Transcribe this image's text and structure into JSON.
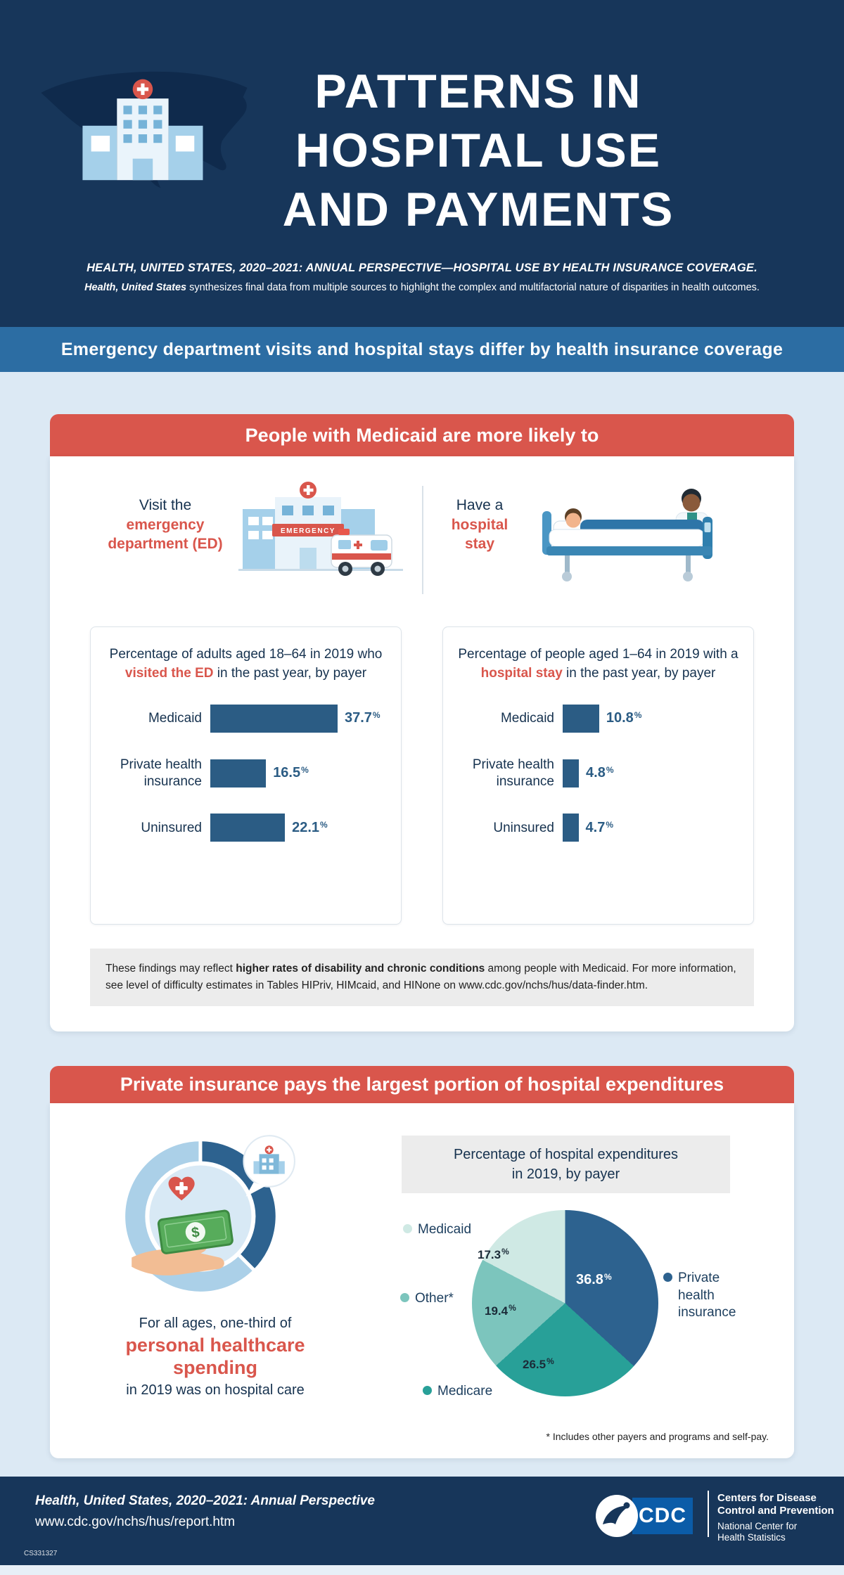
{
  "header": {
    "title_lines": [
      "PATTERNS IN",
      "HOSPITAL USE",
      "AND PAYMENTS"
    ],
    "tagline": "HEALTH, UNITED STATES, 2020–2021: ANNUAL PERSPECTIVE—HOSPITAL USE BY HEALTH INSURANCE COVERAGE.",
    "note_lead": "Health, United States",
    "note_rest": " synthesizes final data from multiple sources to highlight the complex and multifactorial nature of disparities in health outcomes."
  },
  "banner": {
    "text": "Emergency department visits and hospital stays differ by health insurance coverage"
  },
  "medicaid_section": {
    "heading": "People with Medicaid are more likely to",
    "ed_intro_pre": "Visit the",
    "ed_intro_highlight": "emergency department (ED)",
    "stay_intro_pre": "Have a",
    "stay_intro_highlight": "hospital stay",
    "ed_sign_label": "EMERGENCY",
    "note": {
      "pre": "These findings may reflect ",
      "bold": "higher rates of disability and chronic conditions",
      "mid": " among people with Medicaid. For more information, see level of difficulty estimates in Tables HIPriv, HIMcaid, and HINone on ",
      "link": "www.cdc.gov/nchs/hus/data-finder.htm",
      "end": "."
    }
  },
  "expenditure_section": {
    "heading": "Private insurance pays the largest portion of hospital expenditures",
    "spend_line1": "For all ages, one-third of",
    "spend_highlight": "personal healthcare spending",
    "spend_line3": "in 2019 was on hospital care",
    "pie_title_line1": "Percentage of hospital expenditures",
    "pie_title_line2": "in 2019, by payer",
    "dollar_sign": "$"
  },
  "footer": {
    "line1": "Health, United States, 2020–2021: Annual Perspective",
    "line2": "www.cdc.gov/nchs/hus/report.htm",
    "code": "CS331327",
    "cdc_acronym": "CDC",
    "org_line1": "Centers for Disease",
    "org_line2": "Control and Prevention",
    "sub_line1": "National Center for",
    "sub_line2": "Health Statistics"
  },
  "colors": {
    "header_navy": "#17365a",
    "banner_blue": "#2c6da3",
    "page_bg": "#dce9f4",
    "accent_red": "#d9564c",
    "bar_blue": "#2b5c84",
    "note_gray": "#ececec"
  },
  "chart_data": [
    {
      "type": "bar",
      "orientation": "horizontal",
      "title": "Percentage of adults aged 18–64 in 2019 who visited the ED in the past year, by payer",
      "title_pre": "Percentage of adults aged 18–64 in 2019 who ",
      "title_highlight": "visited the ED",
      "title_post": " in the past year, by payer",
      "categories": [
        "Medicaid",
        "Private health insurance",
        "Uninsured"
      ],
      "values": [
        37.7,
        16.5,
        22.1
      ],
      "unit": "%",
      "xlim": [
        0,
        45
      ],
      "bar_color": "#2b5c84",
      "grid": false
    },
    {
      "type": "bar",
      "orientation": "horizontal",
      "title": "Percentage of people aged 1–64 in 2019 with a hospital stay in the past year, by payer",
      "title_pre": "Percentage of people aged 1–64 in 2019 with a ",
      "title_highlight": "hospital stay",
      "title_post": " in the past year, by payer",
      "categories": [
        "Medicaid",
        "Private health insurance",
        "Uninsured"
      ],
      "values": [
        10.8,
        4.8,
        4.7
      ],
      "unit": "%",
      "xlim": [
        0,
        45
      ],
      "bar_color": "#2b5c84",
      "grid": false
    },
    {
      "type": "pie",
      "title": "Percentage of hospital expenditures in 2019, by payer",
      "categories": [
        "Private health insurance",
        "Medicare",
        "Other*",
        "Medicaid"
      ],
      "values": [
        36.8,
        26.5,
        19.4,
        17.3
      ],
      "colors": [
        "#2d628f",
        "#28a098",
        "#7cc5bd",
        "#cfe9e4"
      ],
      "unit": "%",
      "start": "top",
      "direction": "clockwise",
      "legend_position": "around",
      "footnote": "* Includes other payers and programs and self-pay."
    }
  ]
}
